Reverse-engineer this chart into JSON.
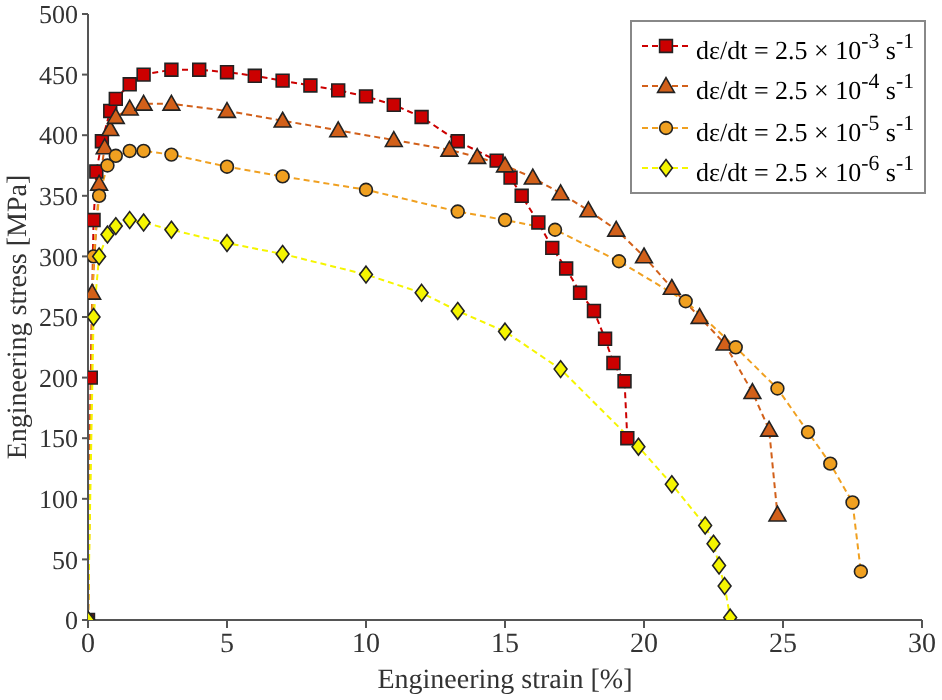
{
  "chart_data": {
    "type": "line",
    "xlabel": "Engineering strain [%]",
    "ylabel": "Engineering stress [MPa]",
    "xlim": [
      0,
      30
    ],
    "xticks": [
      0,
      5,
      10,
      15,
      20,
      25,
      30
    ],
    "ylim": [
      0,
      500
    ],
    "yticks": [
      0,
      50,
      100,
      150,
      200,
      250,
      300,
      350,
      400,
      450,
      500
    ],
    "grid": false,
    "legend": "top right",
    "line_style": "dashed",
    "series": [
      {
        "name": "dε/dt = 2.5 × 10$^{-3}$ s$^{-1}$",
        "color": "#cc0000",
        "marker": "square",
        "x": [
          0,
          0.1,
          0.2,
          0.3,
          0.5,
          0.8,
          1,
          1.5,
          2,
          3,
          4,
          5,
          6,
          7,
          8,
          9,
          10,
          11,
          12,
          13.3,
          14.7,
          15.2,
          15.6,
          16.2,
          16.7,
          17.2,
          17.7,
          18.2,
          18.6,
          18.9,
          19.3,
          19.4
        ],
        "values": [
          0,
          200,
          330,
          370,
          395,
          420,
          430,
          442,
          450,
          454,
          454,
          452,
          449,
          445,
          441,
          437,
          432,
          425,
          415,
          395,
          379,
          365,
          350,
          328,
          307,
          290,
          270,
          255,
          232,
          212,
          197,
          150
        ]
      },
      {
        "name": "dε/dt = 2.5 × 10$^{-4}$ s$^{-1}$",
        "color": "#d2601a",
        "marker": "triangle",
        "x": [
          0,
          0.15,
          0.4,
          0.6,
          0.8,
          1,
          1.5,
          2,
          3,
          5,
          7,
          9,
          11,
          13,
          14,
          15,
          16,
          17,
          18,
          19,
          20,
          21,
          22,
          22.9,
          23.9,
          24.5,
          24.8
        ],
        "values": [
          0,
          270,
          360,
          390,
          405,
          415,
          422,
          426,
          426,
          420,
          412,
          404,
          396,
          388,
          382,
          375,
          365,
          352,
          338,
          322,
          300,
          274,
          250,
          228,
          188,
          157,
          87
        ]
      },
      {
        "name": "dε/dt = 2.5 × 10$^{-5}$ s$^{-1}$",
        "color": "#f0a020",
        "marker": "circle",
        "x": [
          0,
          0.2,
          0.4,
          0.7,
          1,
          1.5,
          2,
          3,
          5,
          7,
          10,
          13.3,
          15,
          16.8,
          19.1,
          21.5,
          23.3,
          24.8,
          25.9,
          26.7,
          27.5,
          27.8
        ],
        "values": [
          0,
          300,
          350,
          375,
          383,
          387,
          387,
          384,
          374,
          366,
          355,
          337,
          330,
          322,
          296,
          263,
          225,
          191,
          155,
          129,
          97,
          40
        ]
      },
      {
        "name": "dε/dt = 2.5 × 10$^{-6}$ s$^{-1}$",
        "color": "#f5f500",
        "marker": "diamond",
        "x": [
          0,
          0.2,
          0.4,
          0.7,
          1,
          1.5,
          2,
          3,
          5,
          7,
          10,
          12,
          13.3,
          15,
          17,
          19.8,
          21,
          22.2,
          22.5,
          22.7,
          22.9,
          23.1
        ],
        "values": [
          0,
          250,
          300,
          318,
          325,
          330,
          328,
          322,
          311,
          302,
          285,
          270,
          255,
          238,
          207,
          143,
          112,
          78,
          63,
          45,
          28,
          2
        ]
      }
    ]
  }
}
